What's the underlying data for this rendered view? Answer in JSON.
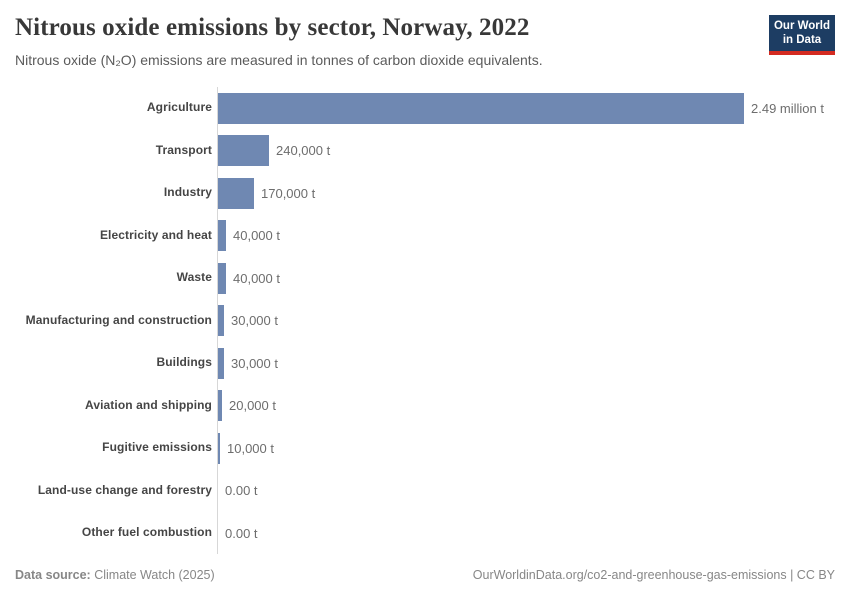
{
  "header": {
    "title": "Nitrous oxide emissions by sector, Norway, 2022",
    "subtitle": "Nitrous oxide (N₂O) emissions are measured in tonnes of carbon dioxide equivalents.",
    "logo_line1": "Our World",
    "logo_line2": "in Data"
  },
  "chart_data": {
    "type": "bar",
    "orientation": "horizontal",
    "title": "Nitrous oxide emissions by sector, Norway, 2022",
    "xlabel": "",
    "ylabel": "",
    "unit": "tonnes of CO2 equivalents",
    "xlim": [
      0,
      2490000
    ],
    "grid": false,
    "legend": "none",
    "bar_color": "#6f88b2",
    "axis_color": "#d7d7d7",
    "categories": [
      "Agriculture",
      "Transport",
      "Industry",
      "Electricity and heat",
      "Waste",
      "Manufacturing and construction",
      "Buildings",
      "Aviation and shipping",
      "Fugitive emissions",
      "Land-use change and forestry",
      "Other fuel combustion"
    ],
    "values": [
      2490000,
      240000,
      170000,
      40000,
      40000,
      30000,
      30000,
      20000,
      10000,
      0,
      0
    ],
    "value_labels": [
      "2.49 million t",
      "240,000 t",
      "170,000 t",
      "40,000 t",
      "40,000 t",
      "30,000 t",
      "30,000 t",
      "20,000 t",
      "10,000 t",
      "0.00 t",
      "0.00 t"
    ]
  },
  "footer": {
    "datasource_label": "Data source:",
    "datasource_value": "Climate Watch (2025)",
    "attribution": "OurWorldinData.org/co2-and-greenhouse-gas-emissions | CC BY"
  }
}
